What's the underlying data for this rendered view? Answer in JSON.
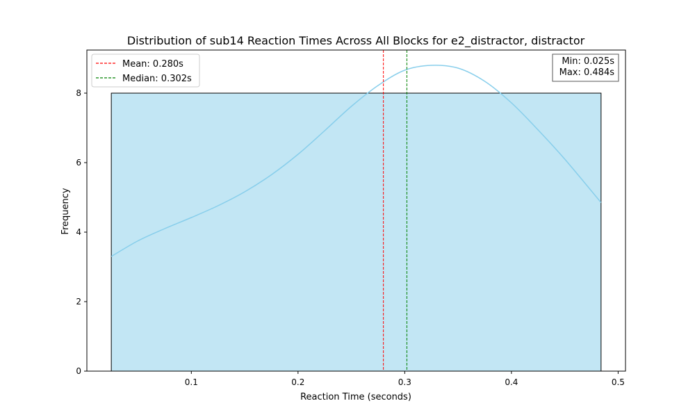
{
  "chart_data": {
    "type": "bar",
    "title": "Distribution of sub14 Reaction Times Across All Blocks for e2_distractor, distractor",
    "xlabel": "Reaction Time (seconds)",
    "ylabel": "Frequency",
    "xlim": [
      0.0021,
      0.5069
    ],
    "ylim": [
      0,
      9.24
    ],
    "xticks": [
      0.1,
      0.2,
      0.3,
      0.4,
      0.5
    ],
    "xtick_labels": [
      "0.1",
      "0.2",
      "0.3",
      "0.4",
      "0.5"
    ],
    "yticks": [
      0,
      2,
      4,
      6,
      8
    ],
    "ytick_labels": [
      "0",
      "2",
      "4",
      "6",
      "8"
    ],
    "grid": false,
    "bins": [
      {
        "x0": 0.025,
        "x1": 0.484,
        "count": 8
      }
    ],
    "bar_color": "#c2e6f4",
    "bar_edge_color": "#000000",
    "kde": {
      "color": "#87ceeb",
      "points": [
        [
          0.025,
          3.3
        ],
        [
          0.05,
          3.75
        ],
        [
          0.075,
          4.1
        ],
        [
          0.1,
          4.42
        ],
        [
          0.125,
          4.76
        ],
        [
          0.15,
          5.16
        ],
        [
          0.175,
          5.65
        ],
        [
          0.2,
          6.24
        ],
        [
          0.225,
          6.92
        ],
        [
          0.25,
          7.62
        ],
        [
          0.275,
          8.22
        ],
        [
          0.3,
          8.66
        ],
        [
          0.325,
          8.8
        ],
        [
          0.35,
          8.72
        ],
        [
          0.375,
          8.34
        ],
        [
          0.4,
          7.72
        ],
        [
          0.425,
          6.94
        ],
        [
          0.45,
          6.1
        ],
        [
          0.484,
          4.85
        ]
      ]
    },
    "lines": [
      {
        "name": "Mean: 0.280s",
        "x": 0.28,
        "color": "#ff0000",
        "style": "dashed"
      },
      {
        "name": "Median: 0.302s",
        "x": 0.302,
        "color": "#008000",
        "style": "dashed"
      }
    ],
    "legend_position": "top-left",
    "annotation": {
      "lines": [
        "Min: 0.025s",
        "Max: 0.484s"
      ],
      "position": "top-right"
    }
  }
}
